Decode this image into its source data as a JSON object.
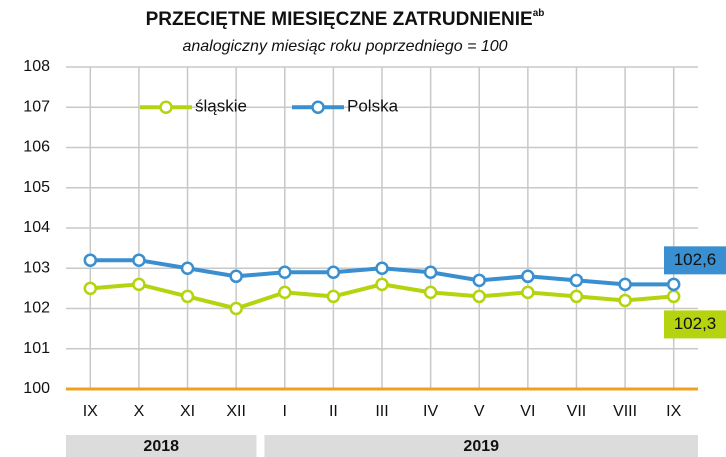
{
  "chart_data": {
    "type": "line",
    "title": "PRZECIĘTNE MIESIĘCZNE ZATRUDNIENIE",
    "title_superscript": "ab",
    "subtitle": "analogiczny miesiąc roku poprzedniego = 100",
    "categories": [
      "IX",
      "X",
      "XI",
      "XII",
      "I",
      "II",
      "III",
      "IV",
      "V",
      "VI",
      "VII",
      "VIII",
      "IX"
    ],
    "groups": [
      {
        "label": "2018",
        "span": 4
      },
      {
        "label": "2019",
        "span": 9
      }
    ],
    "series": [
      {
        "name": "śląskie",
        "color": "#b5d30e",
        "values": [
          102.5,
          102.6,
          102.3,
          102.0,
          102.4,
          102.3,
          102.6,
          102.4,
          102.3,
          102.4,
          102.3,
          102.2,
          102.3
        ],
        "value_labels": [
          null,
          null,
          null,
          null,
          null,
          null,
          null,
          null,
          null,
          null,
          null,
          null,
          "102,3"
        ]
      },
      {
        "name": "Polska",
        "color": "#3a8fd0",
        "values": [
          103.2,
          103.2,
          103.0,
          102.8,
          102.9,
          102.9,
          103.0,
          102.9,
          102.7,
          102.8,
          102.7,
          102.6,
          102.6
        ],
        "value_labels": [
          null,
          null,
          null,
          null,
          null,
          null,
          null,
          null,
          null,
          null,
          null,
          null,
          "102,6"
        ]
      }
    ],
    "ylim": [
      100,
      108
    ],
    "yticks": [
      100,
      101,
      102,
      103,
      104,
      105,
      106,
      107,
      108
    ],
    "grid": true,
    "legend": "upper left"
  }
}
